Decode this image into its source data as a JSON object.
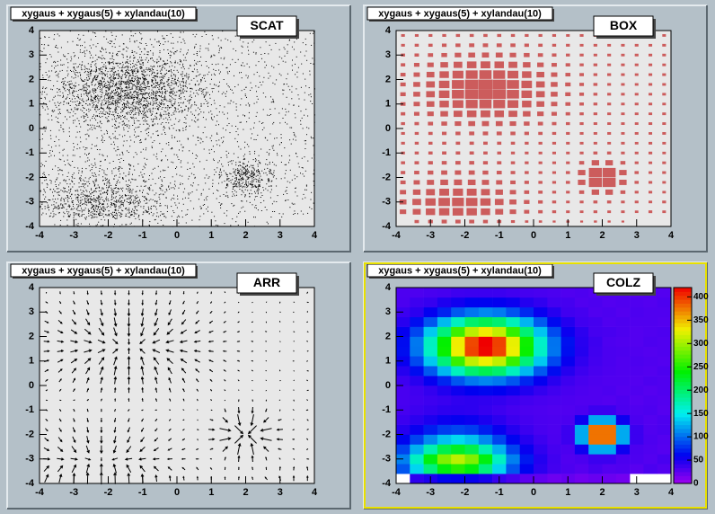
{
  "chart_data": {
    "type": "heatmap",
    "title": "xygaus + xygaus(5) + xylandau(10)",
    "options": [
      "SCAT",
      "BOX",
      "ARR",
      "COLZ"
    ],
    "xlim": [
      -4,
      4
    ],
    "ylim": [
      -4,
      4
    ],
    "xticks": [
      -4,
      -3,
      -2,
      -1,
      0,
      1,
      2,
      3,
      4
    ],
    "yticks": [
      -4,
      -3,
      -2,
      -1,
      0,
      1,
      2,
      3,
      4
    ],
    "zlim": [
      0,
      420
    ],
    "zticks": [
      0,
      50,
      100,
      150,
      200,
      250,
      300,
      350,
      400
    ],
    "scat_color": "#000000",
    "box_color": "#cc5c5c",
    "arr_color": "#000000",
    "frame_color": "#e8e8e8",
    "z": [
      [
        0,
        43,
        50,
        61,
        60,
        58,
        52,
        40,
        33,
        25,
        24,
        19,
        22,
        18,
        21,
        20,
        17,
        0,
        0,
        0
      ],
      [
        92,
        140,
        193,
        236,
        254,
        236,
        193,
        140,
        92,
        61,
        44,
        35,
        31,
        28,
        33,
        29,
        30,
        27,
        32,
        29
      ],
      [
        108,
        167,
        234,
        288,
        310,
        288,
        234,
        167,
        108,
        69,
        47,
        36,
        30,
        32,
        38,
        38,
        32,
        31,
        29,
        33
      ],
      [
        85,
        126,
        173,
        211,
        226,
        211,
        173,
        126,
        85,
        57,
        42,
        34,
        32,
        55,
        124,
        124,
        55,
        32,
        30,
        28
      ],
      [
        61,
        85,
        112,
        133,
        142,
        133,
        112,
        85,
        61,
        46,
        37,
        32,
        38,
        124,
        377,
        377,
        124,
        38,
        31,
        29
      ],
      [
        46,
        57,
        71,
        82,
        86,
        82,
        71,
        57,
        46,
        38,
        33,
        31,
        38,
        124,
        377,
        377,
        124,
        38,
        30,
        32
      ],
      [
        38,
        44,
        50,
        56,
        58,
        56,
        50,
        44,
        38,
        34,
        32,
        31,
        32,
        55,
        124,
        124,
        55,
        32,
        29,
        31
      ],
      [
        34,
        37,
        40,
        43,
        44,
        43,
        40,
        37,
        34,
        32,
        31,
        30,
        30,
        32,
        38,
        38,
        32,
        30,
        31,
        28
      ],
      [
        33,
        35,
        37,
        39,
        42,
        43,
        42,
        41,
        38,
        35,
        33,
        32,
        31,
        30,
        30,
        29,
        31,
        28,
        30,
        29
      ],
      [
        33,
        36,
        41,
        48,
        55,
        60,
        62,
        60,
        55,
        48,
        41,
        36,
        33,
        31,
        30,
        31,
        29,
        30,
        28,
        30
      ],
      [
        37,
        45,
        58,
        74,
        92,
        105,
        110,
        105,
        92,
        74,
        58,
        45,
        37,
        33,
        31,
        30,
        30,
        29,
        31,
        30
      ],
      [
        46,
        64,
        93,
        129,
        169,
        199,
        210,
        199,
        169,
        129,
        93,
        64,
        46,
        37,
        33,
        31,
        30,
        30,
        29,
        31
      ],
      [
        57,
        87,
        135,
        195,
        261,
        312,
        330,
        312,
        261,
        195,
        135,
        87,
        57,
        42,
        35,
        32,
        30,
        31,
        30,
        29
      ],
      [
        65,
        104,
        166,
        243,
        329,
        395,
        418,
        395,
        329,
        243,
        166,
        104,
        65,
        46,
        36,
        32,
        31,
        30,
        29,
        30
      ],
      [
        64,
        105,
        168,
        241,
        331,
        393,
        420,
        396,
        327,
        245,
        165,
        103,
        66,
        45,
        37,
        31,
        30,
        29,
        31,
        30
      ],
      [
        58,
        86,
        136,
        194,
        263,
        310,
        331,
        313,
        259,
        196,
        134,
        88,
        56,
        43,
        34,
        33,
        31,
        29,
        30,
        31
      ],
      [
        45,
        65,
        92,
        130,
        168,
        200,
        209,
        198,
        170,
        128,
        94,
        63,
        47,
        36,
        34,
        30,
        31,
        30,
        30,
        29
      ],
      [
        38,
        44,
        59,
        73,
        93,
        104,
        111,
        106,
        91,
        75,
        57,
        46,
        36,
        34,
        30,
        31,
        29,
        31,
        30,
        30
      ],
      [
        32,
        37,
        40,
        49,
        54,
        61,
        61,
        59,
        56,
        47,
        42,
        35,
        34,
        30,
        31,
        29,
        30,
        30,
        29,
        31
      ],
      [
        31,
        31,
        33,
        34,
        37,
        38,
        38,
        38,
        36,
        34,
        33,
        32,
        30,
        31,
        29,
        30,
        30,
        28,
        30,
        29
      ]
    ]
  }
}
